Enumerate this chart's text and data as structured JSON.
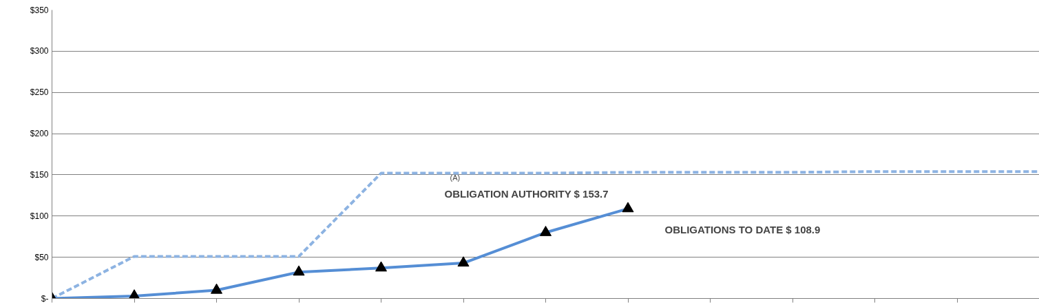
{
  "chart_data": {
    "type": "line",
    "categories": [
      null,
      null,
      null,
      null,
      null,
      null,
      null,
      null,
      null,
      null,
      null,
      null,
      null
    ],
    "ylim": [
      0,
      350
    ],
    "yticks": [
      {
        "value": 0,
        "label": "$-"
      },
      {
        "value": 50,
        "label": "$50"
      },
      {
        "value": 100,
        "label": "$100"
      },
      {
        "value": 150,
        "label": "$150"
      },
      {
        "value": 200,
        "label": "$200"
      },
      {
        "value": 250,
        "label": "$250"
      },
      {
        "value": 300,
        "label": "$300"
      },
      {
        "value": 350,
        "label": "$350"
      }
    ],
    "grid": "y",
    "tick_labels": "y",
    "series": [
      {
        "color": "#8db3e2",
        "line_style": "dashed",
        "marker": "none",
        "values": [
          0,
          51,
          51,
          51,
          152,
          152,
          152,
          153,
          153,
          153,
          154,
          154,
          154
        ]
      },
      {
        "color": "#558ed5",
        "line_style": "solid",
        "marker": "triangle",
        "values": [
          0,
          3,
          10,
          32,
          37,
          43,
          80,
          108.9,
          null,
          null,
          null,
          null,
          null
        ]
      }
    ],
    "annotations": [
      "(A)",
      "OBLIGATION AUTHORITY  $ 153.7",
      "OBLIGATIONS TO DATE    $ 108.9"
    ]
  }
}
